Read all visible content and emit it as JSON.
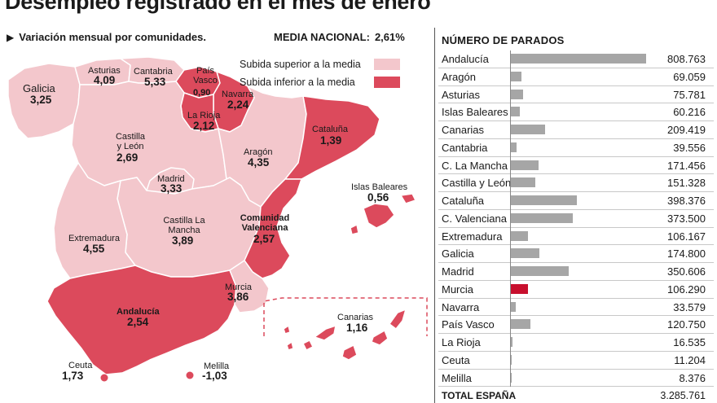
{
  "headline": "Desempleo registrado en el mes de enero",
  "subtitle": "Variación mensual por comunidades.",
  "national": {
    "label": "MEDIA NACIONAL:",
    "value": "2,61%"
  },
  "legend": {
    "above": {
      "label": "Subida superior a la media",
      "color": "#f3c7cc"
    },
    "below": {
      "label": "Subida inferior a la media",
      "color": "#dc4a5c"
    }
  },
  "map": {
    "regions": [
      {
        "key": "galicia",
        "name": "Galicia",
        "value": "3,25",
        "category": "above"
      },
      {
        "key": "asturias",
        "name": "Asturias",
        "value": "4,09",
        "category": "above"
      },
      {
        "key": "cantabria",
        "name": "Cantabria",
        "value": "5,33",
        "category": "above"
      },
      {
        "key": "pais_vasco",
        "name": "País Vasco",
        "value": "0,90",
        "category": "below"
      },
      {
        "key": "navarra",
        "name": "Navarra",
        "value": "2,24",
        "category": "below"
      },
      {
        "key": "la_rioja",
        "name": "La Rioja",
        "value": "2,12",
        "category": "below"
      },
      {
        "key": "castilla_leon",
        "name": "Castilla y León",
        "value": "2,69",
        "category": "above"
      },
      {
        "key": "aragon",
        "name": "Aragón",
        "value": "4,35",
        "category": "above"
      },
      {
        "key": "cataluna",
        "name": "Cataluña",
        "value": "1,39",
        "category": "below"
      },
      {
        "key": "madrid",
        "name": "Madrid",
        "value": "3,33",
        "category": "above"
      },
      {
        "key": "castilla_mancha",
        "name": "Castilla La Mancha",
        "value": "3,89",
        "category": "above"
      },
      {
        "key": "valenciana",
        "name": "Comunidad Valenciana",
        "value": "2,57",
        "category": "below"
      },
      {
        "key": "extremadura",
        "name": "Extremadura",
        "value": "4,55",
        "category": "above"
      },
      {
        "key": "andalucia",
        "name": "Andalucía",
        "value": "2,54",
        "category": "below"
      },
      {
        "key": "murcia",
        "name": "Murcia",
        "value": "3,86",
        "category": "above"
      },
      {
        "key": "baleares",
        "name": "Islas Baleares",
        "value": "0,56",
        "category": "below"
      },
      {
        "key": "canarias",
        "name": "Canarias",
        "value": "1,16",
        "category": "below"
      },
      {
        "key": "ceuta",
        "name": "Ceuta",
        "value": "1,73",
        "category": "below"
      },
      {
        "key": "melilla",
        "name": "Melilla",
        "value": "-1,03",
        "category": "below"
      }
    ]
  },
  "table": {
    "title": "NÚMERO DE PARADOS",
    "rows": [
      {
        "name": "Andalucía",
        "display": "808.763",
        "value": 808763,
        "highlight": false
      },
      {
        "name": "Aragón",
        "display": "69.059",
        "value": 69059,
        "highlight": false
      },
      {
        "name": "Asturias",
        "display": "75.781",
        "value": 75781,
        "highlight": false
      },
      {
        "name": "Islas Baleares",
        "display": "60.216",
        "value": 60216,
        "highlight": false
      },
      {
        "name": "Canarias",
        "display": "209.419",
        "value": 209419,
        "highlight": false
      },
      {
        "name": "Cantabria",
        "display": "39.556",
        "value": 39556,
        "highlight": false
      },
      {
        "name": "C. La Mancha",
        "display": "171.456",
        "value": 171456,
        "highlight": false
      },
      {
        "name": "Castilla y León",
        "display": "151.328",
        "value": 151328,
        "highlight": false
      },
      {
        "name": "Cataluña",
        "display": "398.376",
        "value": 398376,
        "highlight": false
      },
      {
        "name": "C. Valenciana",
        "display": "373.500",
        "value": 373500,
        "highlight": false
      },
      {
        "name": "Extremadura",
        "display": "106.167",
        "value": 106167,
        "highlight": false
      },
      {
        "name": "Galicia",
        "display": "174.800",
        "value": 174800,
        "highlight": false
      },
      {
        "name": "Madrid",
        "display": "350.606",
        "value": 350606,
        "highlight": false
      },
      {
        "name": "Murcia",
        "display": "106.290",
        "value": 106290,
        "highlight": true
      },
      {
        "name": "Navarra",
        "display": "33.579",
        "value": 33579,
        "highlight": false
      },
      {
        "name": "País Vasco",
        "display": "120.750",
        "value": 120750,
        "highlight": false
      },
      {
        "name": "La Rioja",
        "display": "16.535",
        "value": 16535,
        "highlight": false
      },
      {
        "name": "Ceuta",
        "display": "11.204",
        "value": 11204,
        "highlight": false
      },
      {
        "name": "Melilla",
        "display": "8.376",
        "value": 8376,
        "highlight": false
      }
    ],
    "total": {
      "name": "TOTAL ESPAÑA",
      "display": "3.285.761",
      "value": 3285761
    },
    "bar_color": "#a6a6a6",
    "highlight_color": "#c8102e"
  }
}
